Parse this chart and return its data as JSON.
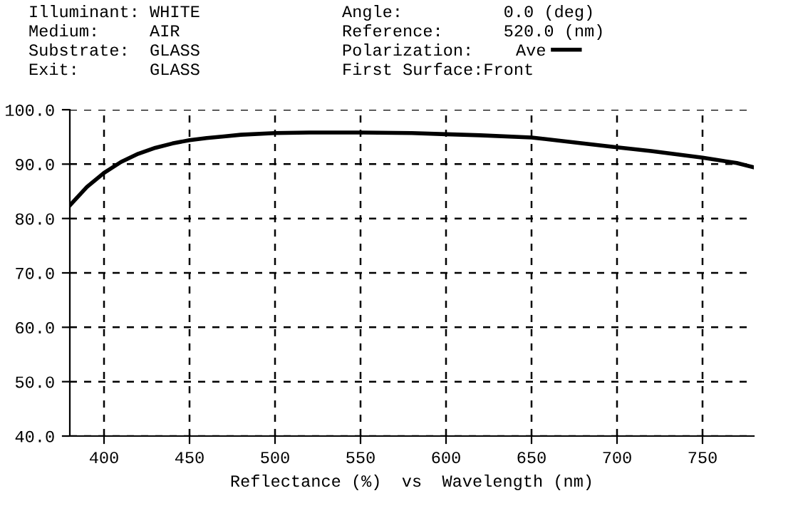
{
  "chart_data": {
    "type": "line",
    "xlabel": "Reflectance (%)  vs  Wavelength (nm)",
    "annotations": [
      "Illuminant: WHITE",
      "Medium:     AIR",
      "Substrate:  GLASS",
      "Exit:       GLASS",
      "Angle:          0.0 (deg)",
      "Reference:      520.0 (nm)",
      "Polarization:",
      "First Surface:Front"
    ],
    "x": [
      380,
      390,
      400,
      410,
      420,
      430,
      440,
      450,
      460,
      470,
      480,
      500,
      520,
      550,
      580,
      600,
      620,
      650,
      680,
      700,
      720,
      750,
      770,
      780
    ],
    "series": [
      {
        "name": "Ave",
        "color": "#000000",
        "values": [
          82.4,
          85.8,
          88.4,
          90.4,
          91.9,
          93.0,
          93.8,
          94.4,
          94.8,
          95.1,
          95.4,
          95.7,
          95.8,
          95.8,
          95.7,
          95.5,
          95.3,
          94.9,
          93.8,
          93.1,
          92.4,
          91.2,
          90.2,
          89.4
        ]
      }
    ],
    "xlim": [
      380,
      780
    ],
    "xticks": [
      400,
      450,
      500,
      550,
      600,
      650,
      700,
      750
    ],
    "ylim": [
      40,
      100
    ],
    "yticks": [
      {
        "value": 40,
        "label": "40.0"
      },
      {
        "value": 50,
        "label": "50.0"
      },
      {
        "value": 60,
        "label": "60.0"
      },
      {
        "value": 70,
        "label": "70.0"
      },
      {
        "value": 80,
        "label": "80.0"
      },
      {
        "value": 90,
        "label": "90.0"
      },
      {
        "value": 100,
        "label": "100.0"
      }
    ],
    "grid": true,
    "legend": "top right",
    "line_style": "solid",
    "marker": "none"
  }
}
